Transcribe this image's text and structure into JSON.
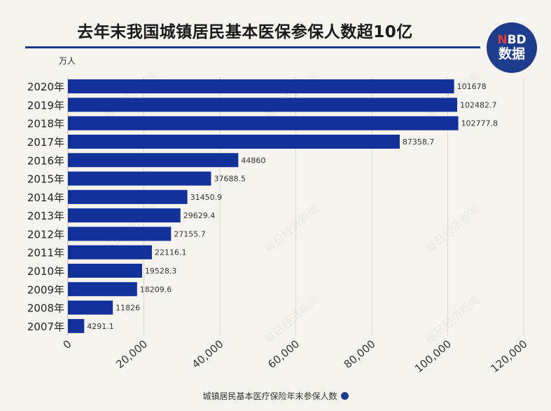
{
  "title": "去年末我国城镇居民基本医保参保人数超10亿",
  "logo": {
    "brand_n": "N",
    "brand_rest": "BD",
    "sub": "数据"
  },
  "watermark": "每日经济新闻",
  "colors": {
    "bar": "#12319a",
    "accent": "#1d3c8c",
    "background": "#f7f3ee",
    "grid": "#d9d5cf"
  },
  "chart_data": {
    "type": "bar",
    "orientation": "horizontal",
    "unit_label": "万人",
    "categories": [
      "2020年",
      "2019年",
      "2018年",
      "2017年",
      "2016年",
      "2015年",
      "2014年",
      "2013年",
      "2012年",
      "2011年",
      "2010年",
      "2009年",
      "2008年",
      "2007年"
    ],
    "series": [
      {
        "name": "城镇居民基本医疗保险年末参保人数",
        "values": [
          101678,
          102482.7,
          102777.8,
          87358.7,
          44860,
          37688.5,
          31450.9,
          29629.4,
          27155.7,
          22116.1,
          19528.3,
          18209.6,
          11826,
          4291.1
        ],
        "labels": [
          "101678",
          "102482.7",
          "102777.8",
          "87358.7",
          "44860",
          "37688.5",
          "31450.9",
          "29629.4",
          "27155.7",
          "22116.1",
          "19528.3",
          "18209.6",
          "11826",
          "4291.1"
        ]
      }
    ],
    "xlim": [
      0,
      120000
    ],
    "xticks": [
      0,
      20000,
      40000,
      60000,
      80000,
      100000,
      120000
    ],
    "xtick_labels": [
      "0",
      "20,000",
      "40,000",
      "60,000",
      "80,000",
      "100,000",
      "120,000"
    ],
    "grid": true,
    "legend_position": "bottom"
  }
}
